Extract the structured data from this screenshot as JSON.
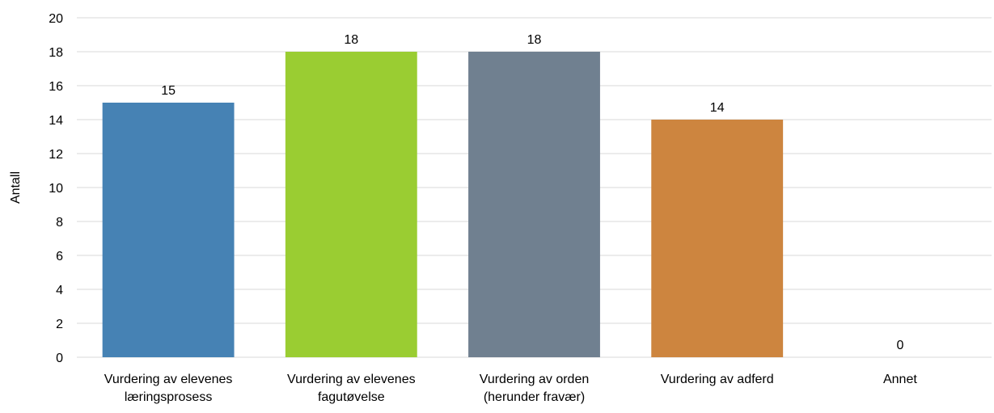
{
  "chart_data": {
    "type": "bar",
    "categories": [
      [
        "Vurdering av elevenes",
        "læringsprosess"
      ],
      [
        "Vurdering av elevenes",
        "fagutøvelse"
      ],
      [
        "Vurdering av orden",
        "(herunder fravær)"
      ],
      [
        "Vurdering av adferd"
      ],
      [
        "Annet"
      ]
    ],
    "values": [
      15,
      18,
      18,
      14,
      0
    ],
    "data_labels": [
      "15",
      "18",
      "18",
      "14",
      "0"
    ],
    "colors": [
      "#4682B4",
      "#9ACD32",
      "#708090",
      "#CD853F",
      "#CD853F"
    ],
    "title": "",
    "xlabel": "",
    "ylabel": "Antall",
    "ylim": [
      0,
      20
    ],
    "yticks": [
      0,
      2,
      4,
      6,
      8,
      10,
      12,
      14,
      16,
      18,
      20
    ],
    "grid": true,
    "legend": "none"
  },
  "colors": {
    "grid": "#d9d9d9",
    "text": "#000000"
  }
}
